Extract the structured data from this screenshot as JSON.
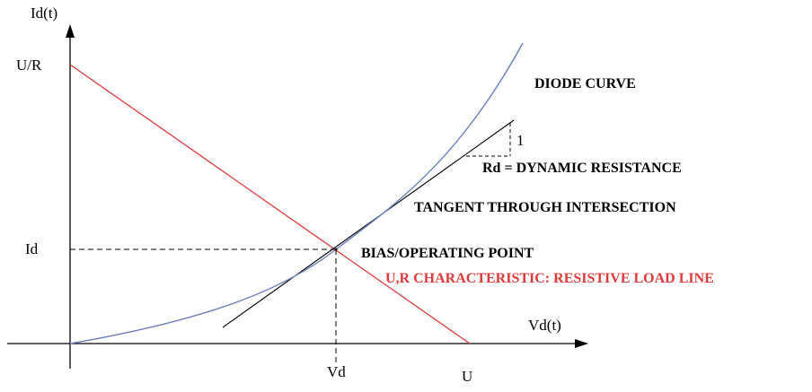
{
  "axes": {
    "y_label": "Id(t)",
    "x_label": "Vd(t)",
    "y_tick_top": "U/R",
    "y_tick_id": "Id",
    "x_tick_vd": "Vd",
    "x_tick_u": "U"
  },
  "labels": {
    "diode_curve": "DIODE CURVE",
    "slope_one": "1",
    "dynamic_resistance": "Rd = DYNAMIC RESISTANCE",
    "tangent": "TANGENT THROUGH INTERSECTION",
    "bias_point": "BIAS/OPERATING POINT",
    "load_line": "U,R CHARACTERISTIC: RESISTIVE LOAD LINE"
  },
  "colors": {
    "diode_curve": "#6a7fc0",
    "load_line": "#e03a3a",
    "axes": "#000000",
    "tangent": "#000000"
  }
}
